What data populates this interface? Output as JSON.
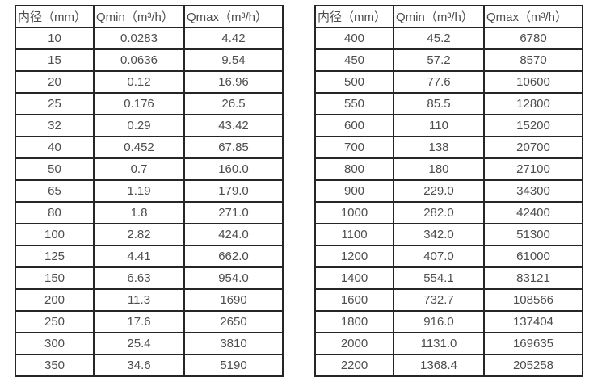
{
  "colors": {
    "background": "#ffffff",
    "table_border": "#262626",
    "table_text": "#4d4d4d"
  },
  "tables": [
    {
      "name": "flow-spec-small-diameters",
      "headers": [
        "内径（mm）",
        "Qmin（m³/h）",
        "Qmax（m³/h）"
      ],
      "rows": [
        [
          "10",
          "0.0283",
          "4.42"
        ],
        [
          "15",
          "0.0636",
          "9.54"
        ],
        [
          "20",
          "0.12",
          "16.96"
        ],
        [
          "25",
          "0.176",
          "26.5"
        ],
        [
          "32",
          "0.29",
          "43.42"
        ],
        [
          "40",
          "0.452",
          "67.85"
        ],
        [
          "50",
          "0.7",
          "160.0"
        ],
        [
          "65",
          "1.19",
          "179.0"
        ],
        [
          "80",
          "1.8",
          "271.0"
        ],
        [
          "100",
          "2.82",
          "424.0"
        ],
        [
          "125",
          "4.41",
          "662.0"
        ],
        [
          "150",
          "6.63",
          "954.0"
        ],
        [
          "200",
          "11.3",
          "1690"
        ],
        [
          "250",
          "17.6",
          "2650"
        ],
        [
          "300",
          "25.4",
          "3810"
        ],
        [
          "350",
          "34.6",
          "5190"
        ]
      ]
    },
    {
      "name": "flow-spec-large-diameters",
      "headers": [
        "内径（mm）",
        "Qmin（m³/h）",
        "Qmax（m³/h）"
      ],
      "rows": [
        [
          "400",
          "45.2",
          "6780"
        ],
        [
          "450",
          "57.2",
          "8570"
        ],
        [
          "500",
          "77.6",
          "10600"
        ],
        [
          "550",
          "85.5",
          "12800"
        ],
        [
          "600",
          "110",
          "15200"
        ],
        [
          "700",
          "138",
          "20700"
        ],
        [
          "800",
          "180",
          "27100"
        ],
        [
          "900",
          "229.0",
          "34300"
        ],
        [
          "1000",
          "282.0",
          "42400"
        ],
        [
          "1100",
          "342.0",
          "51300"
        ],
        [
          "1200",
          "407.0",
          "61000"
        ],
        [
          "1400",
          "554.1",
          "83121"
        ],
        [
          "1600",
          "732.7",
          "108566"
        ],
        [
          "1800",
          "916.0",
          "137404"
        ],
        [
          "2000",
          "1131.0",
          "169635"
        ],
        [
          "2200",
          "1368.4",
          "205258"
        ]
      ]
    }
  ]
}
